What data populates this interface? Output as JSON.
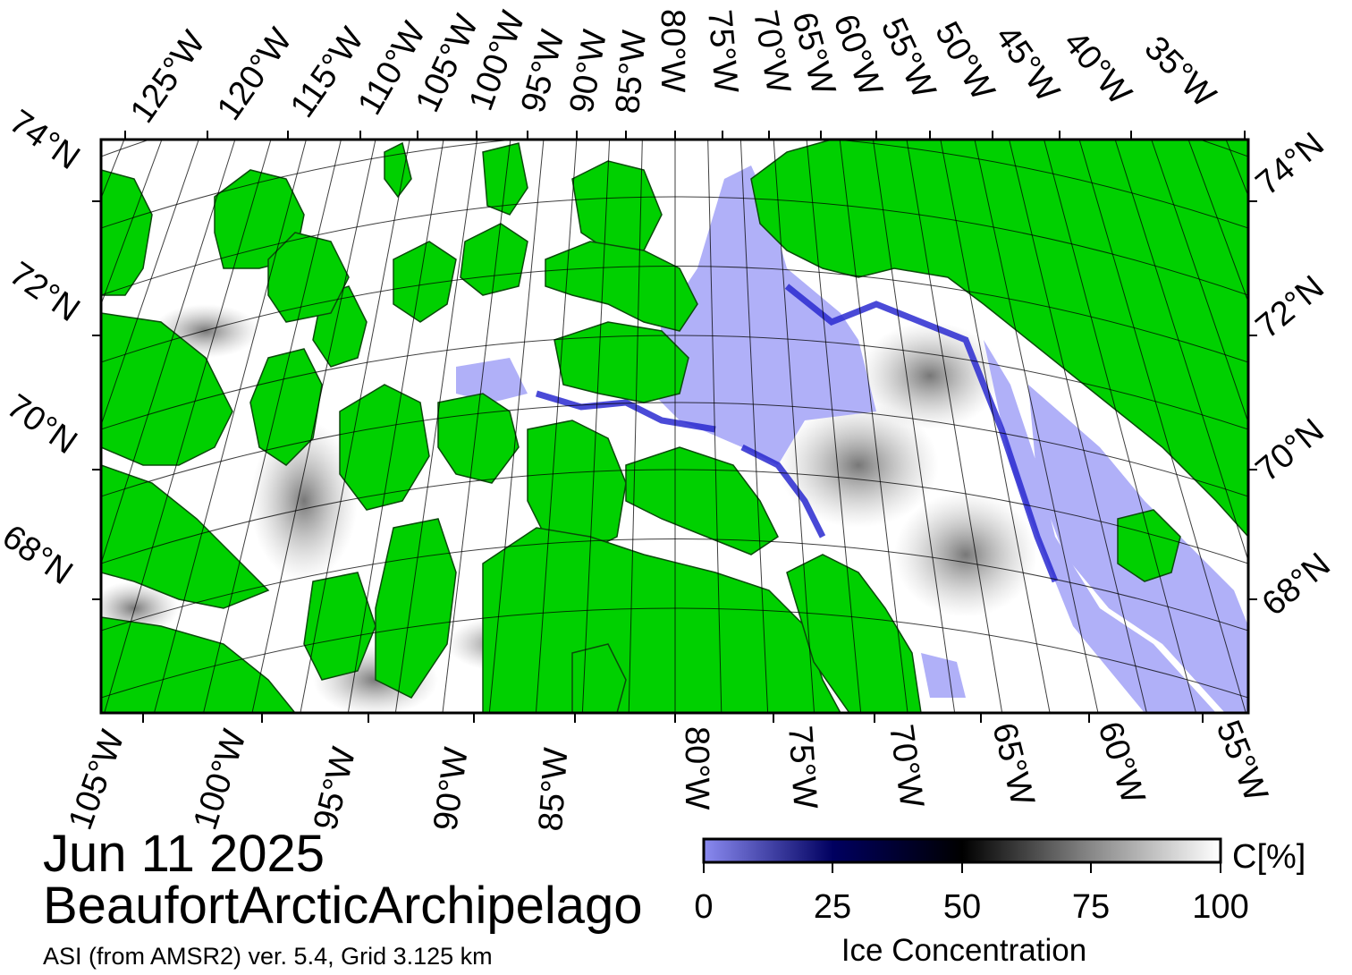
{
  "title": {
    "date": "Jun 11 2025",
    "region": "BeaufortArcticArchipelago",
    "source": "ASI (from AMSR2) ver. 5.4,  Grid 3.125 km"
  },
  "map": {
    "top_longitude_labels": [
      "125°W",
      "120°W",
      "115°W",
      "110°W",
      "105°W",
      "100°W",
      "95°W",
      "90°W",
      "85°W",
      "80°W",
      "75°W",
      "70°W",
      "65°W",
      "60°W",
      "55°W",
      "50°W",
      "45°W",
      "40°W",
      "35°W"
    ],
    "bottom_longitude_labels": [
      "105°W",
      "100°W",
      "95°W",
      "90°W",
      "85°W",
      "80°W",
      "75°W",
      "70°W",
      "65°W",
      "60°W",
      "55°W"
    ],
    "left_latitude_labels": [
      "74°N",
      "72°N",
      "70°N",
      "68°N"
    ],
    "right_latitude_labels": [
      "74°N",
      "72°N",
      "70°N",
      "68°N"
    ],
    "colors": {
      "land": "#00d000",
      "open_water": "#b0b0f8",
      "low_ice": "#3a3ae0",
      "frame": "#000000"
    }
  },
  "colorbar": {
    "unit": "C[%]",
    "label": "Ice Concentration",
    "ticks": [
      "0",
      "25",
      "50",
      "75",
      "100"
    ],
    "stops": [
      "#8a8af0",
      "#000060",
      "#000000",
      "#888888",
      "#ffffff"
    ]
  }
}
